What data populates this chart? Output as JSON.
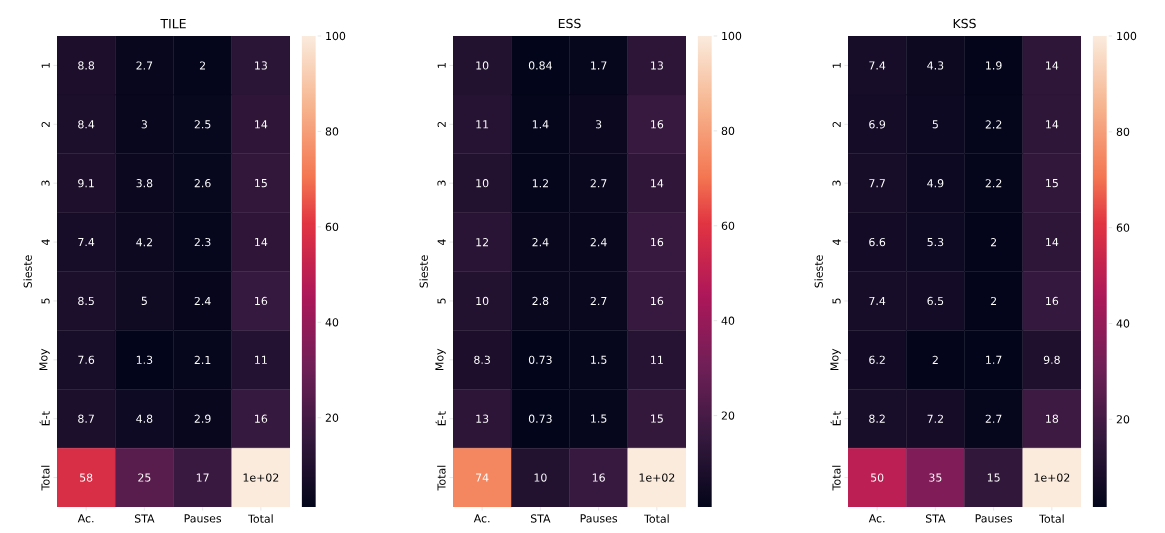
{
  "chart_data": [
    {
      "type": "heatmap",
      "title": "TILE",
      "ylabel": "Sieste",
      "categories": [
        "Ac.",
        "STA",
        "Pauses",
        "Total"
      ],
      "y_categories": [
        "1",
        "2",
        "3",
        "4",
        "5",
        "Moy",
        "É-t",
        "Total"
      ],
      "cells": [
        [
          8.8,
          2.7,
          2,
          13
        ],
        [
          8.4,
          3,
          2.5,
          14
        ],
        [
          9.1,
          3.8,
          2.6,
          15
        ],
        [
          7.4,
          4.2,
          2.3,
          14
        ],
        [
          8.5,
          5,
          2.4,
          16
        ],
        [
          7.6,
          1.3,
          2.1,
          11
        ],
        [
          8.7,
          4.8,
          2.9,
          16
        ],
        [
          58,
          25,
          17,
          100
        ]
      ],
      "cell_labels": [
        [
          "8.8",
          "2.7",
          "2",
          "13"
        ],
        [
          "8.4",
          "3",
          "2.5",
          "14"
        ],
        [
          "9.1",
          "3.8",
          "2.6",
          "15"
        ],
        [
          "7.4",
          "4.2",
          "2.3",
          "14"
        ],
        [
          "8.5",
          "5",
          "2.4",
          "16"
        ],
        [
          "7.6",
          "1.3",
          "2.1",
          "11"
        ],
        [
          "8.7",
          "4.8",
          "2.9",
          "16"
        ],
        [
          "58",
          "25",
          "17",
          "1e+02"
        ]
      ],
      "clim": [
        1.3,
        100
      ],
      "cticks": [
        20,
        40,
        60,
        80,
        100
      ]
    },
    {
      "type": "heatmap",
      "title": "ESS",
      "ylabel": "Sieste",
      "categories": [
        "Ac.",
        "STA",
        "Pauses",
        "Total"
      ],
      "y_categories": [
        "1",
        "2",
        "3",
        "4",
        "5",
        "Moy",
        "É-t",
        "Total"
      ],
      "cells": [
        [
          10,
          0.84,
          1.7,
          13
        ],
        [
          11,
          1.4,
          3,
          16
        ],
        [
          10,
          1.2,
          2.7,
          14
        ],
        [
          12,
          2.4,
          2.4,
          16
        ],
        [
          10,
          2.8,
          2.7,
          16
        ],
        [
          8.3,
          0.73,
          1.5,
          11
        ],
        [
          13,
          0.73,
          1.5,
          15
        ],
        [
          74,
          10,
          16,
          100
        ]
      ],
      "cell_labels": [
        [
          "10",
          "0.84",
          "1.7",
          "13"
        ],
        [
          "11",
          "1.4",
          "3",
          "16"
        ],
        [
          "10",
          "1.2",
          "2.7",
          "14"
        ],
        [
          "12",
          "2.4",
          "2.4",
          "16"
        ],
        [
          "10",
          "2.8",
          "2.7",
          "16"
        ],
        [
          "8.3",
          "0.73",
          "1.5",
          "11"
        ],
        [
          "13",
          "0.73",
          "1.5",
          "15"
        ],
        [
          "74",
          "10",
          "16",
          "1e+02"
        ]
      ],
      "clim": [
        0.73,
        100
      ],
      "cticks": [
        20,
        40,
        60,
        80,
        100
      ]
    },
    {
      "type": "heatmap",
      "title": "KSS",
      "ylabel": "Sieste",
      "categories": [
        "Ac.",
        "STA",
        "Pauses",
        "Total"
      ],
      "y_categories": [
        "1",
        "2",
        "3",
        "4",
        "5",
        "Moy",
        "É-t",
        "Total"
      ],
      "cells": [
        [
          7.4,
          4.3,
          1.9,
          14
        ],
        [
          6.9,
          5,
          2.2,
          14
        ],
        [
          7.7,
          4.9,
          2.2,
          15
        ],
        [
          6.6,
          5.3,
          2,
          14
        ],
        [
          7.4,
          6.5,
          2,
          16
        ],
        [
          6.2,
          2,
          1.7,
          9.8
        ],
        [
          8.2,
          7.2,
          2.7,
          18
        ],
        [
          50,
          35,
          15,
          100
        ]
      ],
      "cell_labels": [
        [
          "7.4",
          "4.3",
          "1.9",
          "14"
        ],
        [
          "6.9",
          "5",
          "2.2",
          "14"
        ],
        [
          "7.7",
          "4.9",
          "2.2",
          "15"
        ],
        [
          "6.6",
          "5.3",
          "2",
          "14"
        ],
        [
          "7.4",
          "6.5",
          "2",
          "16"
        ],
        [
          "6.2",
          "2",
          "1.7",
          "9.8"
        ],
        [
          "8.2",
          "7.2",
          "2.7",
          "18"
        ],
        [
          "50",
          "35",
          "15",
          "1e+02"
        ]
      ],
      "clim": [
        1.7,
        100
      ],
      "cticks": [
        20,
        40,
        60,
        80,
        100
      ]
    }
  ]
}
